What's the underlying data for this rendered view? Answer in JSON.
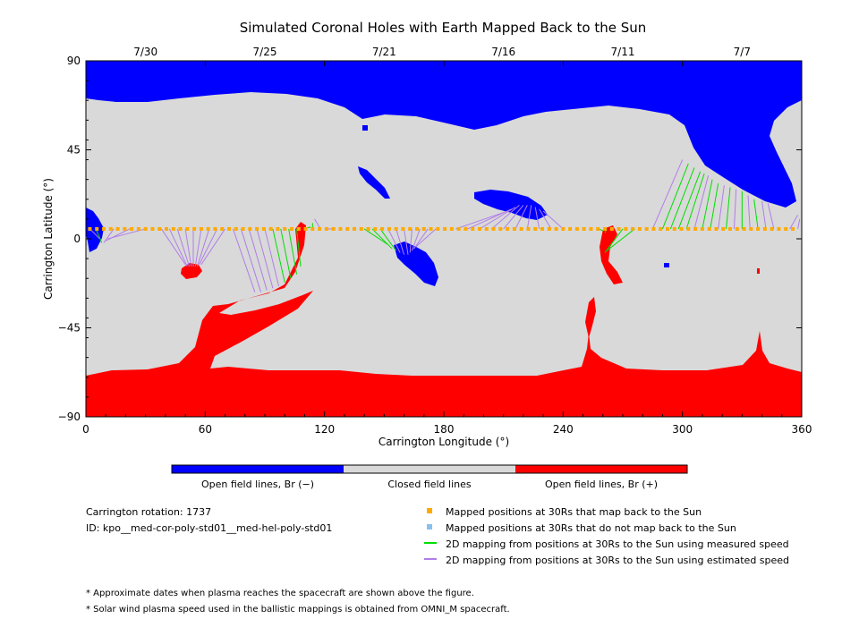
{
  "chart_data": {
    "type": "heatmap",
    "title": "Simulated Coronal Holes with Earth Mapped Back to the Sun",
    "xlabel": "Carrington Longitude (°)",
    "ylabel": "Carrington Latitude (°)",
    "xlim": [
      0,
      360
    ],
    "ylim": [
      -90,
      90
    ],
    "x_ticks": [
      0,
      60,
      120,
      180,
      240,
      300,
      360
    ],
    "y_ticks": [
      90,
      45,
      0,
      -45,
      -90
    ],
    "y_tick_labels": [
      "90",
      "45",
      "0",
      "−45",
      "−90"
    ],
    "top_dates": [
      {
        "label": "7/30",
        "lon": 30
      },
      {
        "label": "7/25",
        "lon": 90
      },
      {
        "label": "7/21",
        "lon": 150
      },
      {
        "label": "7/16",
        "lon": 210
      },
      {
        "label": "7/11",
        "lon": 270
      },
      {
        "label": "7/7",
        "lon": 330
      }
    ],
    "colors": {
      "open_negative": "#0000ff",
      "closed": "#d9d9d9",
      "open_positive": "#ff0000",
      "mapped_yes": "#ffaa00",
      "mapped_no": "#88c0ee",
      "measured_speed": "#00dd00",
      "estimated_speed": "#b07ee8"
    },
    "colorbar_labels": [
      "Open field lines, Br (−)",
      "Closed field lines",
      "Open field lines, Br (+)"
    ],
    "mapped_positions_30Rs": {
      "lat": 5,
      "lon_range": [
        2,
        358
      ],
      "spacing_deg": 3.5
    },
    "field_line_mappings": [
      {
        "from": [
          2,
          5
        ],
        "to": [
          7,
          0
        ],
        "speed": "estimated"
      },
      {
        "from": [
          5,
          5
        ],
        "to": [
          8,
          -2
        ],
        "speed": "measured"
      },
      {
        "from": [
          14,
          5
        ],
        "to": [
          9,
          -2
        ],
        "speed": "estimated"
      },
      {
        "from": [
          22,
          5
        ],
        "to": [
          10,
          -1
        ],
        "speed": "estimated"
      },
      {
        "from": [
          30,
          5
        ],
        "to": [
          11,
          0
        ],
        "speed": "estimated"
      },
      {
        "from": [
          38,
          5
        ],
        "to": [
          50,
          -13
        ],
        "speed": "estimated"
      },
      {
        "from": [
          42,
          5
        ],
        "to": [
          51,
          -14
        ],
        "speed": "estimated"
      },
      {
        "from": [
          46,
          5
        ],
        "to": [
          52,
          -14
        ],
        "speed": "estimated"
      },
      {
        "from": [
          50,
          5
        ],
        "to": [
          53,
          -14
        ],
        "speed": "estimated"
      },
      {
        "from": [
          54,
          5
        ],
        "to": [
          54,
          -14
        ],
        "speed": "estimated"
      },
      {
        "from": [
          58,
          5
        ],
        "to": [
          55,
          -14
        ],
        "speed": "estimated"
      },
      {
        "from": [
          62,
          5
        ],
        "to": [
          56,
          -14
        ],
        "speed": "estimated"
      },
      {
        "from": [
          66,
          5
        ],
        "to": [
          57,
          -13
        ],
        "speed": "estimated"
      },
      {
        "from": [
          70,
          5
        ],
        "to": [
          58,
          -13
        ],
        "speed": "estimated"
      },
      {
        "from": [
          74,
          5
        ],
        "to": [
          85,
          -27
        ],
        "speed": "estimated"
      },
      {
        "from": [
          78,
          5
        ],
        "to": [
          88,
          -27
        ],
        "speed": "estimated"
      },
      {
        "from": [
          82,
          5
        ],
        "to": [
          91,
          -26
        ],
        "speed": "estimated"
      },
      {
        "from": [
          86,
          5
        ],
        "to": [
          94,
          -25
        ],
        "speed": "estimated"
      },
      {
        "from": [
          90,
          5
        ],
        "to": [
          97,
          -24
        ],
        "speed": "estimated"
      },
      {
        "from": [
          94,
          5
        ],
        "to": [
          100,
          -22
        ],
        "speed": "measured"
      },
      {
        "from": [
          98,
          5
        ],
        "to": [
          103,
          -20
        ],
        "speed": "measured"
      },
      {
        "from": [
          102,
          5
        ],
        "to": [
          106,
          -18
        ],
        "speed": "measured"
      },
      {
        "from": [
          106,
          5
        ],
        "to": [
          108,
          -14
        ],
        "speed": "measured"
      },
      {
        "from": [
          110,
          5
        ],
        "to": [
          113,
          6
        ],
        "speed": "measured"
      },
      {
        "from": [
          114,
          5
        ],
        "to": [
          114,
          8
        ],
        "speed": "measured"
      },
      {
        "from": [
          118,
          5
        ],
        "to": [
          115,
          10
        ],
        "speed": "estimated"
      },
      {
        "from": [
          124,
          5
        ],
        "to": [
          120,
          5
        ],
        "speed": "estimated"
      },
      {
        "from": [
          140,
          5
        ],
        "to": [
          152,
          -3
        ],
        "speed": "measured"
      },
      {
        "from": [
          144,
          5
        ],
        "to": [
          154,
          -5
        ],
        "speed": "measured"
      },
      {
        "from": [
          148,
          5
        ],
        "to": [
          156,
          -6
        ],
        "speed": "measured"
      },
      {
        "from": [
          152,
          5
        ],
        "to": [
          158,
          -7
        ],
        "speed": "estimated"
      },
      {
        "from": [
          156,
          5
        ],
        "to": [
          160,
          -8
        ],
        "speed": "estimated"
      },
      {
        "from": [
          160,
          5
        ],
        "to": [
          162,
          -8
        ],
        "speed": "estimated"
      },
      {
        "from": [
          164,
          5
        ],
        "to": [
          163,
          -7
        ],
        "speed": "estimated"
      },
      {
        "from": [
          168,
          5
        ],
        "to": [
          164,
          -6
        ],
        "speed": "estimated"
      },
      {
        "from": [
          172,
          5
        ],
        "to": [
          165,
          -5
        ],
        "speed": "estimated"
      },
      {
        "from": [
          176,
          5
        ],
        "to": [
          166,
          -4
        ],
        "speed": "estimated"
      },
      {
        "from": [
          186,
          5
        ],
        "to": [
          212,
          14
        ],
        "speed": "estimated"
      },
      {
        "from": [
          192,
          5
        ],
        "to": [
          214,
          15
        ],
        "speed": "estimated"
      },
      {
        "from": [
          198,
          5
        ],
        "to": [
          216,
          16
        ],
        "speed": "estimated"
      },
      {
        "from": [
          204,
          5
        ],
        "to": [
          218,
          17
        ],
        "speed": "estimated"
      },
      {
        "from": [
          210,
          5
        ],
        "to": [
          220,
          17
        ],
        "speed": "estimated"
      },
      {
        "from": [
          216,
          5
        ],
        "to": [
          222,
          17
        ],
        "speed": "estimated"
      },
      {
        "from": [
          222,
          5
        ],
        "to": [
          224,
          17
        ],
        "speed": "estimated"
      },
      {
        "from": [
          228,
          5
        ],
        "to": [
          226,
          16
        ],
        "speed": "estimated"
      },
      {
        "from": [
          234,
          5
        ],
        "to": [
          228,
          15
        ],
        "speed": "estimated"
      },
      {
        "from": [
          240,
          5
        ],
        "to": [
          230,
          14
        ],
        "speed": "estimated"
      },
      {
        "from": [
          258,
          5
        ],
        "to": [
          260,
          4
        ],
        "speed": "measured"
      },
      {
        "from": [
          262,
          5
        ],
        "to": [
          261,
          3
        ],
        "speed": "measured"
      },
      {
        "from": [
          270,
          5
        ],
        "to": [
          261,
          -7
        ],
        "speed": "measured"
      },
      {
        "from": [
          276,
          5
        ],
        "to": [
          262,
          -6
        ],
        "speed": "measured"
      },
      {
        "from": [
          285,
          5
        ],
        "to": [
          300,
          40
        ],
        "speed": "estimated"
      },
      {
        "from": [
          290,
          5
        ],
        "to": [
          303,
          38
        ],
        "speed": "measured"
      },
      {
        "from": [
          294,
          5
        ],
        "to": [
          306,
          36
        ],
        "speed": "measured"
      },
      {
        "from": [
          298,
          5
        ],
        "to": [
          309,
          34
        ],
        "speed": "measured"
      },
      {
        "from": [
          302,
          5
        ],
        "to": [
          311,
          33
        ],
        "speed": "measured"
      },
      {
        "from": [
          306,
          5
        ],
        "to": [
          313,
          32
        ],
        "speed": "estimated"
      },
      {
        "from": [
          310,
          5
        ],
        "to": [
          315,
          30
        ],
        "speed": "measured"
      },
      {
        "from": [
          314,
          5
        ],
        "to": [
          318,
          28
        ],
        "speed": "measured"
      },
      {
        "from": [
          318,
          5
        ],
        "to": [
          321,
          27
        ],
        "speed": "estimated"
      },
      {
        "from": [
          322,
          5
        ],
        "to": [
          324,
          26
        ],
        "speed": "measured"
      },
      {
        "from": [
          326,
          5
        ],
        "to": [
          327,
          25
        ],
        "speed": "estimated"
      },
      {
        "from": [
          330,
          5
        ],
        "to": [
          330,
          24
        ],
        "speed": "measured"
      },
      {
        "from": [
          334,
          5
        ],
        "to": [
          333,
          22
        ],
        "speed": "estimated"
      },
      {
        "from": [
          338,
          5
        ],
        "to": [
          336,
          20
        ],
        "speed": "measured"
      },
      {
        "from": [
          342,
          5
        ],
        "to": [
          340,
          19
        ],
        "speed": "estimated"
      },
      {
        "from": [
          346,
          5
        ],
        "to": [
          343,
          18
        ],
        "speed": "estimated"
      },
      {
        "from": [
          354,
          5
        ],
        "to": [
          358,
          12
        ],
        "speed": "estimated"
      },
      {
        "from": [
          358,
          5
        ],
        "to": [
          359,
          10
        ],
        "speed": "estimated"
      }
    ]
  },
  "legend": {
    "rotation_label": "Carrington rotation: 1737",
    "id_label": "ID: kpo__med-cor-poly-std01__med-hel-poly-std01",
    "items": [
      {
        "label": "Mapped positions at 30Rs that map back to the Sun",
        "color": "#ffaa00",
        "kind": "square"
      },
      {
        "label": "Mapped positions at 30Rs that do not map back to the Sun",
        "color": "#88c0ee",
        "kind": "square"
      },
      {
        "label": "2D mapping from positions at 30Rs to the Sun using measured speed",
        "color": "#00dd00",
        "kind": "line"
      },
      {
        "label": "2D mapping from positions at 30Rs to the Sun using estimated speed",
        "color": "#b07ee8",
        "kind": "line"
      }
    ]
  },
  "notes": [
    "* Approximate dates when plasma reaches the spacecraft are shown above the figure.",
    "* Solar wind plasma speed used in the ballistic mappings is obtained from OMNI_M spacecraft."
  ]
}
